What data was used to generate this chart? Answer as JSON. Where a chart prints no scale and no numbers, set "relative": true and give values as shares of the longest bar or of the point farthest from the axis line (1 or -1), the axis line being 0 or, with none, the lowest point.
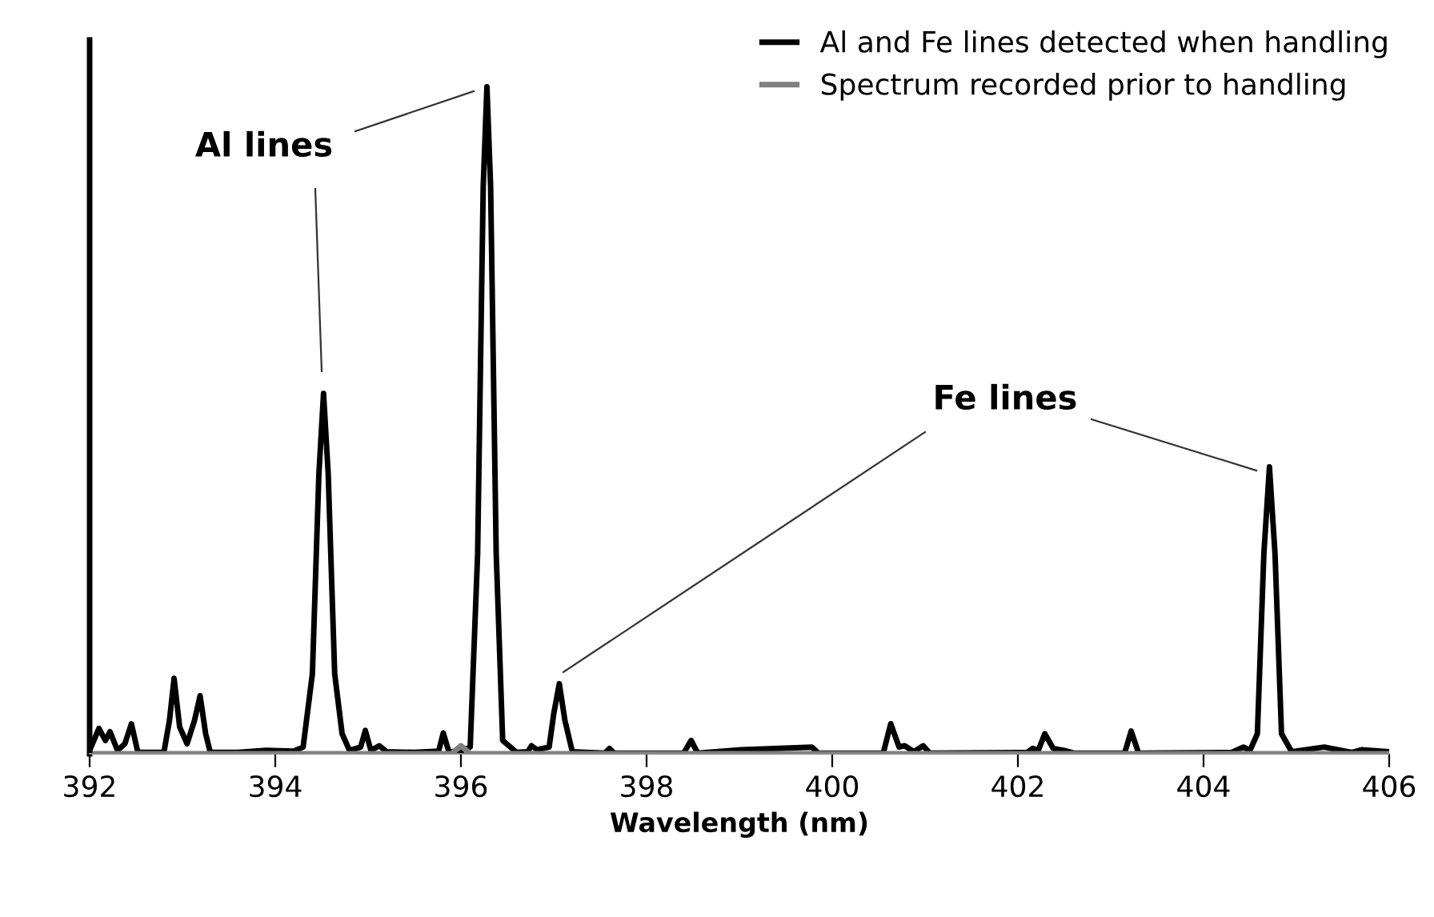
{
  "chart_data": {
    "type": "line",
    "relative": true,
    "xlabel": "Wavelength (nm)",
    "xlim": [
      392,
      406
    ],
    "xticks": [
      392,
      394,
      396,
      398,
      400,
      402,
      404,
      406
    ],
    "legend": "top right",
    "grid": false,
    "marker": "none",
    "line_style": "solid",
    "annotations": [
      "Al lines",
      "Fe lines"
    ],
    "series": [
      {
        "name": "Al and Fe lines detected when handling",
        "color": "#000000",
        "x": [
          392.0,
          392.1,
          392.17,
          392.22,
          392.3,
          392.38,
          392.45,
          392.52,
          392.8,
          392.86,
          392.91,
          392.97,
          393.05,
          393.13,
          393.19,
          393.25,
          393.3,
          393.6,
          393.9,
          394.2,
          394.3,
          394.4,
          394.47,
          394.52,
          394.57,
          394.64,
          394.72,
          394.8,
          394.92,
          394.97,
          395.03,
          395.12,
          395.2,
          395.5,
          395.76,
          395.81,
          395.87,
          396.0,
          396.1,
          396.18,
          396.24,
          396.28,
          396.32,
          396.38,
          396.45,
          396.6,
          396.72,
          396.76,
          396.82,
          396.88,
          396.95,
          397.0,
          397.06,
          397.12,
          397.2,
          397.55,
          397.6,
          397.65,
          398.4,
          398.48,
          398.55,
          399.02,
          399.78,
          399.85,
          400.55,
          400.63,
          400.72,
          400.78,
          400.88,
          400.98,
          401.05,
          402.1,
          402.16,
          402.22,
          402.29,
          402.38,
          402.5,
          402.6,
          403.15,
          403.22,
          403.3,
          404.3,
          404.43,
          404.5,
          404.58,
          404.65,
          404.71,
          404.77,
          404.84,
          404.95,
          405.3,
          405.6,
          405.7,
          406.0
        ],
        "values": [
          0.005,
          0.038,
          0.02,
          0.033,
          0.005,
          0.015,
          0.045,
          0.002,
          0.002,
          0.05,
          0.113,
          0.04,
          0.015,
          0.05,
          0.087,
          0.03,
          0.002,
          0.002,
          0.005,
          0.004,
          0.01,
          0.12,
          0.42,
          0.54,
          0.42,
          0.12,
          0.03,
          0.005,
          0.01,
          0.035,
          0.005,
          0.012,
          0.003,
          0.002,
          0.004,
          0.031,
          0.003,
          0.004,
          0.01,
          0.3,
          0.85,
          1,
          0.85,
          0.3,
          0.02,
          0.002,
          0.003,
          0.012,
          0.006,
          0.008,
          0.01,
          0.06,
          0.105,
          0.05,
          0.003,
          0.001,
          0.008,
          0.001,
          0.001,
          0.02,
          0.001,
          0.006,
          0.01,
          0.001,
          0.001,
          0.045,
          0.01,
          0.012,
          0.003,
          0.012,
          0.001,
          0.002,
          0.008,
          0.005,
          0.03,
          0.008,
          0.005,
          0.001,
          0.001,
          0.034,
          0.001,
          0.002,
          0.01,
          0.005,
          0.03,
          0.3,
          0.43,
          0.3,
          0.03,
          0.003,
          0.01,
          0.002,
          0.006,
          0.003
        ]
      },
      {
        "name": "Spectrum recorded prior to handling",
        "color": "#808080",
        "x": [
          392,
          395.9,
          396.0,
          396.1,
          406
        ],
        "values": [
          0,
          0,
          0.012,
          0,
          0
        ]
      }
    ]
  }
}
